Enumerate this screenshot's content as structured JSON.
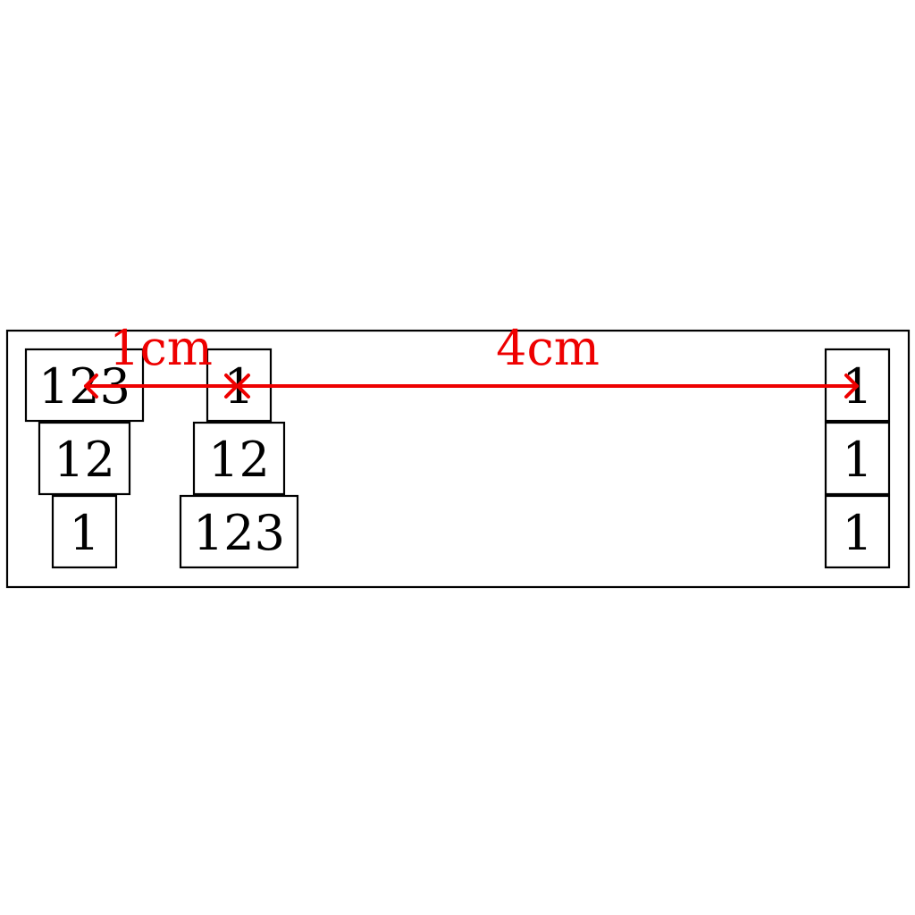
{
  "colors": {
    "stroke": "#000000",
    "dimension": "#ee0000",
    "background": "#ffffff"
  },
  "columns": [
    {
      "id": "left",
      "cells": [
        "123",
        "12",
        "1"
      ]
    },
    {
      "id": "middle",
      "cells": [
        "1",
        "12",
        "123"
      ]
    },
    {
      "id": "right",
      "cells": [
        "1",
        "1",
        "1"
      ]
    }
  ],
  "dimensions": [
    {
      "id": "left-to-middle",
      "label": "1cm"
    },
    {
      "id": "middle-to-right",
      "label": "4cm"
    }
  ]
}
